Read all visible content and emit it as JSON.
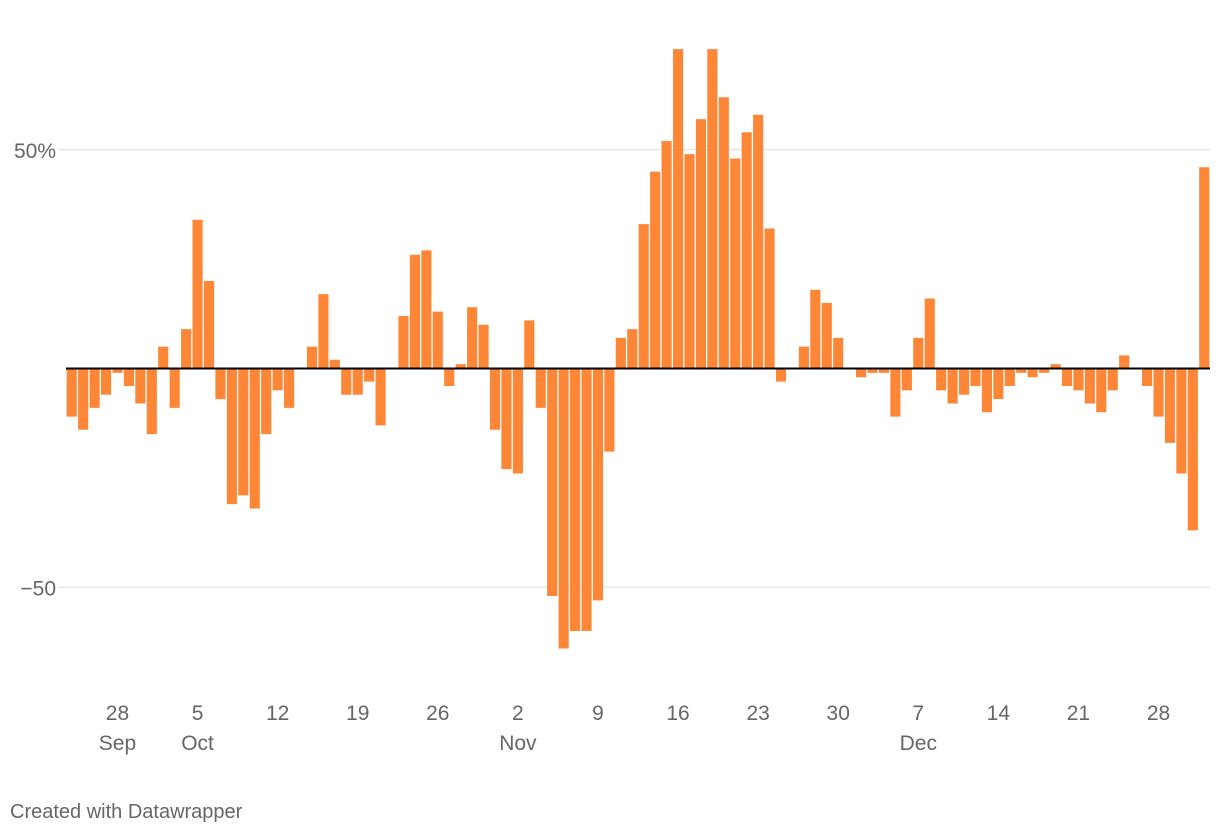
{
  "chart_data": {
    "type": "bar",
    "start_date": "2020-09-24",
    "x_ticks": [
      {
        "day": 28,
        "month": "Sep",
        "label": "28",
        "sublabel": "Sep"
      },
      {
        "day": 5,
        "month": "Oct",
        "label": "5",
        "sublabel": "Oct"
      },
      {
        "day": 12,
        "month": "Oct",
        "label": "12",
        "sublabel": ""
      },
      {
        "day": 19,
        "month": "Oct",
        "label": "19",
        "sublabel": ""
      },
      {
        "day": 26,
        "month": "Oct",
        "label": "26",
        "sublabel": ""
      },
      {
        "day": 2,
        "month": "Nov",
        "label": "2",
        "sublabel": "Nov"
      },
      {
        "day": 9,
        "month": "Nov",
        "label": "9",
        "sublabel": ""
      },
      {
        "day": 16,
        "month": "Nov",
        "label": "16",
        "sublabel": ""
      },
      {
        "day": 23,
        "month": "Nov",
        "label": "23",
        "sublabel": ""
      },
      {
        "day": 30,
        "month": "Nov",
        "label": "30",
        "sublabel": ""
      },
      {
        "day": 7,
        "month": "Dec",
        "label": "7",
        "sublabel": "Dec"
      },
      {
        "day": 14,
        "month": "Dec",
        "label": "14",
        "sublabel": ""
      },
      {
        "day": 21,
        "month": "Dec",
        "label": "21",
        "sublabel": ""
      },
      {
        "day": 28,
        "month": "Dec",
        "label": "28",
        "sublabel": ""
      }
    ],
    "y_ticks": [
      {
        "value": 50,
        "label": "50%"
      },
      {
        "value": -50,
        "label": "−50"
      }
    ],
    "ylim": [
      -73,
      73
    ],
    "values": [
      -11,
      -14,
      -9,
      -6,
      -1,
      -4,
      -8,
      -15,
      5,
      -9,
      9,
      34,
      20,
      -7,
      -31,
      -29,
      -32,
      -15,
      -5,
      -9,
      0,
      5,
      17,
      2,
      -6,
      -6,
      -3,
      -13,
      0,
      12,
      26,
      27,
      13,
      -4,
      1,
      14,
      10,
      -14,
      -23,
      -24,
      11,
      -9,
      -52,
      -64,
      -60,
      -60,
      -53,
      -19,
      7,
      9,
      33,
      45,
      52,
      73,
      49,
      57,
      73,
      62,
      48,
      54,
      58,
      32,
      -3,
      0,
      5,
      18,
      15,
      7,
      0,
      -2,
      -1,
      -1,
      -11,
      -5,
      7,
      16,
      -5,
      -8,
      -6,
      -4,
      -10,
      -7,
      -4,
      -1,
      -2,
      -1,
      1,
      -4,
      -5,
      -8,
      -10,
      -5,
      3,
      0,
      -4,
      -11,
      -17,
      -24,
      -37,
      46
    ],
    "grid": true,
    "bar_color": "#fe8637",
    "zero_line_color": "#000000",
    "grid_color": "#dddddd",
    "text_color": "#666666"
  },
  "footer": {
    "credit": "Created with Datawrapper"
  }
}
